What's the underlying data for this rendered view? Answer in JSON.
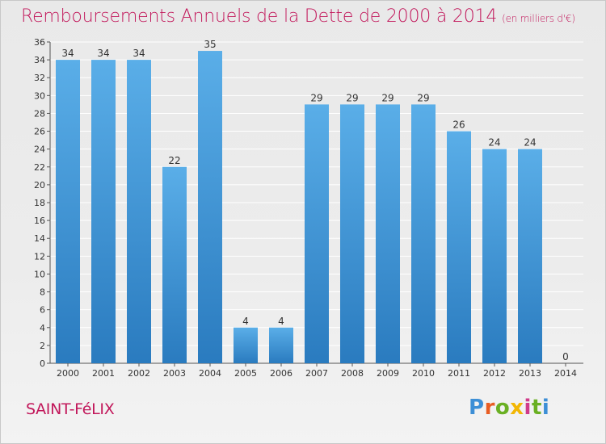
{
  "title": "Remboursements Annuels de la Dette de 2000 à 2014",
  "subtitle": "(en milliers d'€)",
  "place_name": "SAINT-FéLIX",
  "logo": {
    "parts": [
      "P",
      "r",
      "o",
      "x",
      "i",
      "t",
      "i"
    ]
  },
  "colors": {
    "title": "#c2185b",
    "bar_top": "#5aaee8",
    "bar_bottom": "#2a7bbf",
    "grid": "#ffffff"
  },
  "chart_data": {
    "type": "bar",
    "title": "Remboursements Annuels de la Dette de 2000 à 2014",
    "subtitle": "(en milliers d'€)",
    "xlabel": "",
    "ylabel": "",
    "categories": [
      "2000",
      "2001",
      "2002",
      "2003",
      "2004",
      "2005",
      "2006",
      "2007",
      "2008",
      "2009",
      "2010",
      "2011",
      "2012",
      "2013",
      "2014"
    ],
    "values": [
      34,
      34,
      34,
      22,
      35,
      4,
      4,
      29,
      29,
      29,
      29,
      26,
      24,
      24,
      0
    ],
    "ylim": [
      0,
      36
    ],
    "yticks": [
      0,
      2,
      4,
      6,
      8,
      10,
      12,
      14,
      16,
      18,
      20,
      22,
      24,
      26,
      28,
      30,
      32,
      34,
      36
    ],
    "grid": true,
    "data_labels": true
  }
}
